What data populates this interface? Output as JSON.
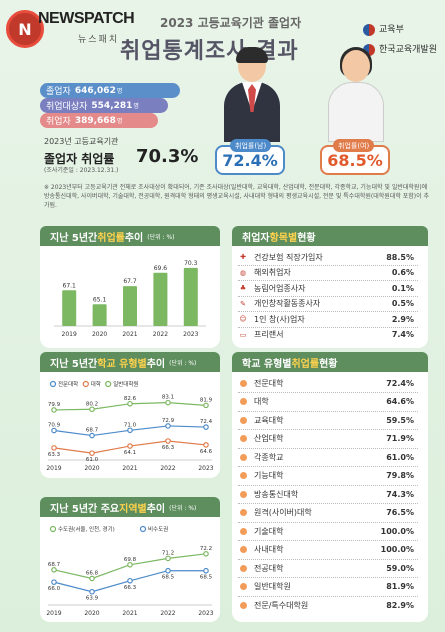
{
  "header": {
    "logo_mark": "N",
    "logo_text": "NEWSPATCH",
    "logo_sub": "뉴스패치",
    "small_title": "2023 고등교육기관 졸업자",
    "main_title": "취업통계조사 결과",
    "ministry_1": "교육부",
    "ministry_2": "한국교육개발원"
  },
  "stats": {
    "graduates_label": "졸업자",
    "graduates_value": "646,062",
    "graduates_unit": "명",
    "target_label": "취업대상자",
    "target_value": "554,281",
    "target_unit": "명",
    "employed_label": "취업자",
    "employed_value": "389,668",
    "employed_unit": "명",
    "rate_sub": "2023년 고등교육기관",
    "rate_label": "졸업자 취업률",
    "rate_value": "70.3%",
    "base_date": "(조사기준일 : 2023.12.31.)"
  },
  "gender": {
    "male_label": "취업률(남)",
    "male_value": "72.4%",
    "female_label": "취업률(여)",
    "female_value": "68.5%"
  },
  "note": "※ 2023년부터 고등교육기관 전체로 조사대상이 확대되어, 기존 조사대상(일반대학, 교육대학, 산업대학, 전문대학, 각종학교, 기능대학 및 일반대학원)에 방송통신대학, 사이버대학, 기술대학, 전공대학, 원격대학 형태의 평생교육시설, 사내대학 형태의 평생교육시설, 전문 및 특수대학원(대학원대학 포함)이 추가됨.",
  "panel5y": {
    "title_a": "지난 5년간 ",
    "title_hl": "취업률",
    "title_b": " 추이",
    "unit": "(단위 : %)"
  },
  "panelType": {
    "title_a": "지난 5년간 ",
    "title_hl": "학교 유형별",
    "title_b": " 추이",
    "unit": "(단위 : %)",
    "legend": [
      "전문대학",
      "대학",
      "일반대학원"
    ]
  },
  "panelRegion": {
    "title_a": "지난 5년간 주요 ",
    "title_hl": "지역별",
    "title_b": " 추이",
    "unit": "(단위 : %)",
    "legend": [
      "수도권(서울, 인천, 경기)",
      "비수도권"
    ]
  },
  "panelCategory": {
    "title_a": "취업자 ",
    "title_hl": "항목별",
    "title_b": " 현황",
    "items": [
      {
        "label": "건강보험 직장가입자",
        "value": "88.5%",
        "icon": "hospital-icon"
      },
      {
        "label": "해외취업자",
        "value": "0.6%",
        "icon": "globe-icon"
      },
      {
        "label": "농림어업종사자",
        "value": "0.1%",
        "icon": "farm-icon"
      },
      {
        "label": "개인창작활동종사자",
        "value": "0.5%",
        "icon": "palette-icon"
      },
      {
        "label": "1인 창(사)업자",
        "value": "2.9%",
        "icon": "person-icon"
      },
      {
        "label": "프리랜서",
        "value": "7.4%",
        "icon": "laptop-icon"
      }
    ]
  },
  "panelSchool": {
    "title_a": "학교 유형별 ",
    "title_hl": "취업률",
    "title_b": " 현황",
    "items": [
      {
        "label": "전문대학",
        "value": "72.4%"
      },
      {
        "label": "대학",
        "value": "64.6%"
      },
      {
        "label": "교육대학",
        "value": "59.5%"
      },
      {
        "label": "산업대학",
        "value": "71.9%"
      },
      {
        "label": "각종학교",
        "value": "61.0%"
      },
      {
        "label": "기능대학",
        "value": "79.8%"
      },
      {
        "label": "방송통신대학",
        "value": "74.3%"
      },
      {
        "label": "원격(사이버)대학",
        "value": "76.5%"
      },
      {
        "label": "기술대학",
        "value": "100.0%"
      },
      {
        "label": "사내대학",
        "value": "100.0%"
      },
      {
        "label": "전공대학",
        "value": "59.0%"
      },
      {
        "label": "일반대학원",
        "value": "81.9%"
      },
      {
        "label": "전문/특수대학원",
        "value": "82.9%"
      }
    ]
  },
  "colors": {
    "green": "#5e8e5e",
    "highlight": "#ffd24d",
    "blue": "#4d8ac9",
    "orange": "#e07b4a",
    "bar": "#7cb862"
  },
  "chart_data": [
    {
      "type": "bar",
      "categories": [
        "2019",
        "2020",
        "2021",
        "2022",
        "2023"
      ],
      "values": [
        67.1,
        65.1,
        67.7,
        69.6,
        70.3
      ],
      "ylim": [
        62,
        72
      ]
    },
    {
      "type": "line",
      "categories": [
        "2019",
        "2020",
        "2021",
        "2022",
        "2023"
      ],
      "series": [
        {
          "name": "전문대학",
          "values": [
            70.9,
            68.7,
            71.0,
            72.9,
            72.4
          ]
        },
        {
          "name": "대학",
          "values": [
            63.3,
            61.0,
            64.1,
            66.3,
            64.6
          ]
        },
        {
          "name": "일반대학원",
          "values": [
            79.9,
            80.2,
            82.6,
            83.1,
            81.9
          ]
        }
      ],
      "ylim": [
        58,
        86
      ]
    },
    {
      "type": "line",
      "categories": [
        "2019",
        "2020",
        "2021",
        "2022",
        "2023"
      ],
      "series": [
        {
          "name": "수도권(서울, 인천, 경기)",
          "values": [
            68.7,
            66.8,
            69.8,
            71.2,
            72.2
          ]
        },
        {
          "name": "비수도권",
          "values": [
            66.0,
            63.9,
            66.3,
            68.5,
            68.5
          ]
        }
      ],
      "ylim": [
        61,
        75
      ]
    }
  ]
}
